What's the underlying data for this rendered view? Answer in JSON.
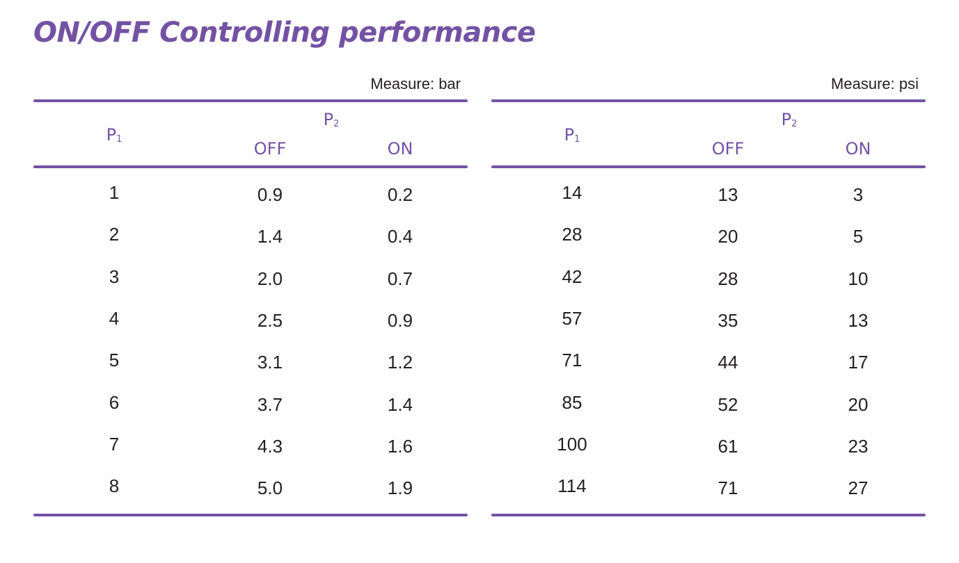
{
  "title": "ON/OFF Controlling performance",
  "tables": [
    {
      "measure": "Measure: bar",
      "header": {
        "p1": "P",
        "p1_sub": "1",
        "p2": "P",
        "p2_sub": "2",
        "off": "OFF",
        "on": "ON"
      },
      "rows": [
        [
          "1",
          "0.9",
          "0.2"
        ],
        [
          "2",
          "1.4",
          "0.4"
        ],
        [
          "3",
          "2.0",
          "0.7"
        ],
        [
          "4",
          "2.5",
          "0.9"
        ],
        [
          "5",
          "3.1",
          "1.2"
        ],
        [
          "6",
          "3.7",
          "1.4"
        ],
        [
          "7",
          "4.3",
          "1.6"
        ],
        [
          "8",
          "5.0",
          "1.9"
        ]
      ]
    },
    {
      "measure": "Measure: psi",
      "header": {
        "p1": "P",
        "p1_sub": "1",
        "p2": "P",
        "p2_sub": "2",
        "off": "OFF",
        "on": "ON"
      },
      "rows": [
        [
          "14",
          "13",
          "3"
        ],
        [
          "28",
          "20",
          "5"
        ],
        [
          "42",
          "28",
          "10"
        ],
        [
          "57",
          "35",
          "13"
        ],
        [
          "71",
          "44",
          "17"
        ],
        [
          "85",
          "52",
          "20"
        ],
        [
          "100",
          "61",
          "23"
        ],
        [
          "114",
          "71",
          "27"
        ]
      ]
    }
  ],
  "colors": {
    "accent": "#7352a4",
    "text": "#231f20"
  }
}
